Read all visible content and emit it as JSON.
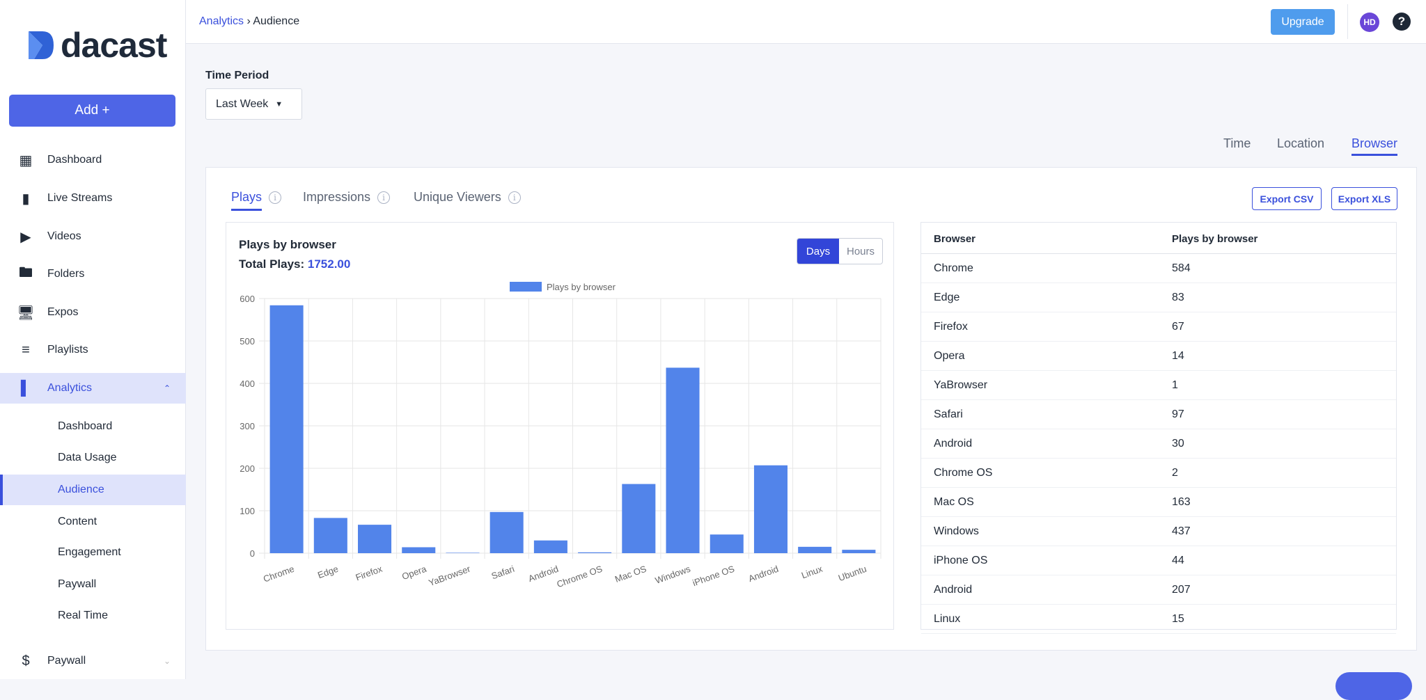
{
  "brand": {
    "name": "dacast"
  },
  "sidebar": {
    "add_label": "Add +",
    "items": [
      {
        "label": "Dashboard",
        "icon": "dashboard-icon"
      },
      {
        "label": "Live Streams",
        "icon": "camera-icon"
      },
      {
        "label": "Videos",
        "icon": "play-icon"
      },
      {
        "label": "Folders",
        "icon": "folder-icon"
      },
      {
        "label": "Expos",
        "icon": "monitor-icon"
      },
      {
        "label": "Playlists",
        "icon": "playlist-icon"
      },
      {
        "label": "Analytics",
        "icon": "bar-chart-icon"
      },
      {
        "label": "Paywall",
        "icon": "dollar-icon"
      }
    ],
    "analytics_sub": [
      "Dashboard",
      "Data Usage",
      "Audience",
      "Content",
      "Engagement",
      "Paywall",
      "Real Time"
    ]
  },
  "header": {
    "breadcrumb": [
      "Analytics",
      "Audience"
    ],
    "upgrade": "Upgrade",
    "avatar": "HD",
    "help": "?"
  },
  "time_period": {
    "label": "Time Period",
    "value": "Last Week"
  },
  "view_tabs": [
    "Time",
    "Location",
    "Browser"
  ],
  "metric_tabs": [
    "Plays",
    "Impressions",
    "Unique Viewers"
  ],
  "export": {
    "csv": "Export CSV",
    "xls": "Export XLS"
  },
  "chart_panel": {
    "title": "Plays by browser",
    "total_label": "Total Plays:",
    "total_value": "1752.00",
    "toggle": [
      "Days",
      "Hours"
    ]
  },
  "chart_data": {
    "type": "bar",
    "legend": "Plays by browser",
    "legend_position": "top",
    "categories": [
      "Chrome",
      "Edge",
      "Firefox",
      "Opera",
      "YaBrowser",
      "Safari",
      "Android",
      "Chrome OS",
      "Mac OS",
      "Windows",
      "iPhone OS",
      "Android",
      "Linux",
      "Ubuntu"
    ],
    "values": [
      584,
      83,
      67,
      14,
      1,
      97,
      30,
      2,
      163,
      437,
      44,
      207,
      15,
      8
    ],
    "ylim": [
      0,
      600
    ],
    "yticks": [
      0,
      100,
      200,
      300,
      400,
      500,
      600
    ],
    "grid": true,
    "color": "#5284ea"
  },
  "table": {
    "headers": [
      "Browser",
      "Plays by browser"
    ],
    "rows": [
      [
        "Chrome",
        "584"
      ],
      [
        "Edge",
        "83"
      ],
      [
        "Firefox",
        "67"
      ],
      [
        "Opera",
        "14"
      ],
      [
        "YaBrowser",
        "1"
      ],
      [
        "Safari",
        "97"
      ],
      [
        "Android",
        "30"
      ],
      [
        "Chrome OS",
        "2"
      ],
      [
        "Mac OS",
        "163"
      ],
      [
        "Windows",
        "437"
      ],
      [
        "iPhone OS",
        "44"
      ],
      [
        "Android",
        "207"
      ],
      [
        "Linux",
        "15"
      ]
    ]
  }
}
